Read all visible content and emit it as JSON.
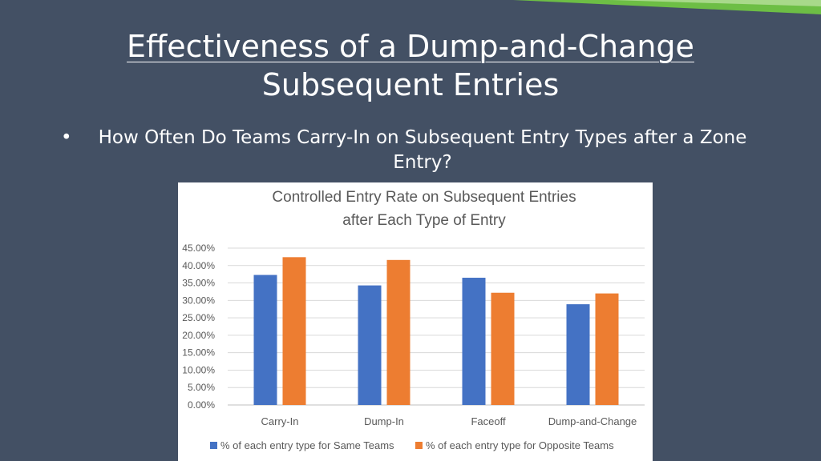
{
  "slide": {
    "title_line1": "Effectiveness of a Dump-and-Change",
    "title_line2": "Subsequent Entries",
    "bullet": "How Often Do Teams Carry-In on Subsequent Entry Types after a Zone Entry?"
  },
  "colors": {
    "background": "#435064",
    "accent_green": "#6DBE45",
    "series_same": "#4472C4",
    "series_opposite": "#ED7D31"
  },
  "chart_data": {
    "type": "bar",
    "title_line1": "Controlled Entry Rate on Subsequent Entries",
    "title_line2": "after Each Type of Entry",
    "categories": [
      "Carry-In",
      "Dump-In",
      "Faceoff",
      "Dump-and-Change"
    ],
    "series": [
      {
        "name": "% of each entry type for Same Teams",
        "values": [
          37.3,
          34.3,
          36.5,
          28.9
        ]
      },
      {
        "name": "% of each entry type for Opposite Teams",
        "values": [
          42.4,
          41.6,
          32.2,
          32.0
        ]
      }
    ],
    "yticks": [
      "0.00%",
      "5.00%",
      "10.00%",
      "15.00%",
      "20.00%",
      "25.00%",
      "30.00%",
      "35.00%",
      "40.00%",
      "45.00%"
    ],
    "ylim": [
      0,
      45
    ],
    "grid": true,
    "legend": "bottom"
  }
}
